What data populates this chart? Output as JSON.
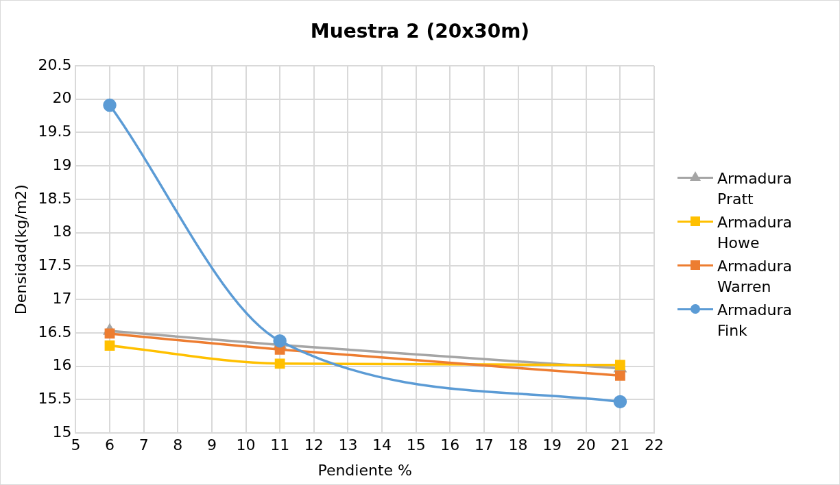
{
  "chart_data": {
    "type": "line",
    "title": "Muestra 2 (20x30m)",
    "xlabel": "Pendiente %",
    "ylabel": "Densidad(kg/m2)",
    "x": [
      6,
      11,
      21
    ],
    "series": [
      {
        "name": "Armadura Pratt",
        "color": "#a5a5a5",
        "marker": "triangle",
        "values": [
          16.53,
          16.32,
          15.97
        ]
      },
      {
        "name": "Armadura Howe",
        "color": "#ffc000",
        "marker": "square",
        "values": [
          16.31,
          16.04,
          16.02
        ]
      },
      {
        "name": "Armadura Warren",
        "color": "#ed7d31",
        "marker": "square",
        "values": [
          16.49,
          16.25,
          15.86
        ]
      },
      {
        "name": "Armadura Fink",
        "color": "#5b9bd5",
        "marker": "circle",
        "values": [
          19.91,
          16.38,
          15.47
        ]
      }
    ],
    "xlim": [
      5,
      22
    ],
    "xticks": [
      5,
      6,
      7,
      8,
      9,
      10,
      11,
      12,
      13,
      14,
      15,
      16,
      17,
      18,
      19,
      20,
      21,
      22
    ],
    "ylim": [
      15,
      20.5
    ],
    "yticks": [
      15,
      15.5,
      16,
      16.5,
      17,
      17.5,
      18,
      18.5,
      19,
      19.5,
      20,
      20.5
    ],
    "grid": true,
    "legend": "right",
    "line_style": "solid"
  }
}
